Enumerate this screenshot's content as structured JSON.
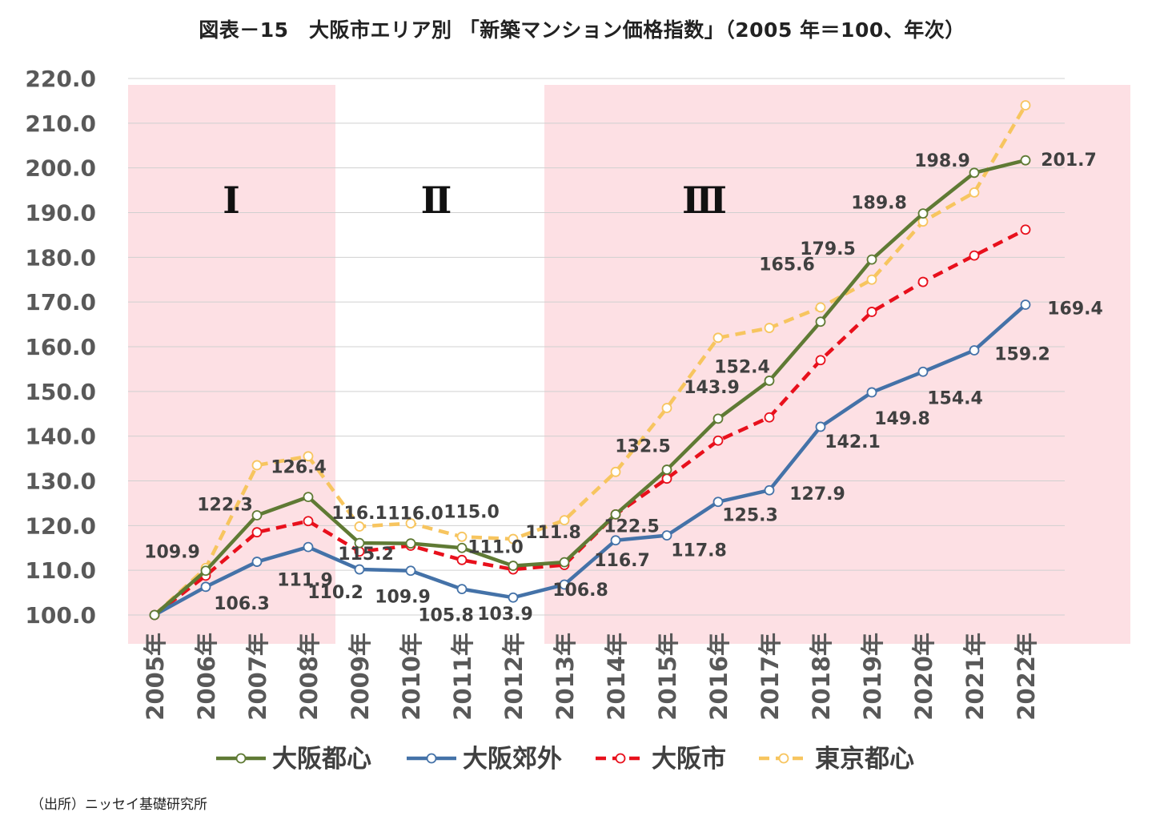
{
  "title": "図表－15　大阪市エリア別 「新築マンション価格指数」（2005 年＝100、年次）",
  "source": "（出所）ニッセイ基礎研究所",
  "chart_data": {
    "type": "line",
    "title": "図表－15　大阪市エリア別 「新築マンション価格指数」（2005 年＝100、年次）",
    "categories": [
      "2005年",
      "2006年",
      "2007年",
      "2008年",
      "2009年",
      "2010年",
      "2011年",
      "2012年",
      "2013年",
      "2014年",
      "2015年",
      "2016年",
      "2017年",
      "2018年",
      "2019年",
      "2020年",
      "2021年",
      "2022年"
    ],
    "ylim": [
      100,
      220
    ],
    "ytick_step": 10,
    "ytick_labels": [
      "100.0",
      "110.0",
      "120.0",
      "130.0",
      "140.0",
      "150.0",
      "160.0",
      "170.0",
      "180.0",
      "190.0",
      "200.0",
      "210.0",
      "220.0"
    ],
    "grid": true,
    "legend_position": "bottom",
    "periods": [
      {
        "label": "Ⅰ",
        "from": "2005年",
        "to": "2008年",
        "shaded": true,
        "color": "#fde0e4"
      },
      {
        "label": "Ⅱ",
        "from": "2009年",
        "to": "2012年",
        "shaded": false
      },
      {
        "label": "Ⅲ",
        "from": "2013年",
        "to": "2022年",
        "shaded": true,
        "color": "#fde0e4"
      }
    ],
    "series": [
      {
        "name": "東京都心",
        "color": "#f7c55f",
        "dash": "dashed",
        "values": [
          100.0,
          110.5,
          133.5,
          135.5,
          119.8,
          120.5,
          117.5,
          117.0,
          121.2,
          132.0,
          146.3,
          162.0,
          164.2,
          168.8,
          175.0,
          188.0,
          194.5,
          214.0
        ]
      },
      {
        "name": "大阪市",
        "color": "#e8101c",
        "dash": "dashed",
        "values": [
          100.0,
          108.8,
          118.5,
          121.0,
          114.2,
          115.5,
          112.3,
          110.2,
          111.2,
          122.5,
          130.5,
          139.0,
          144.2,
          157.0,
          167.8,
          174.5,
          180.4,
          186.2
        ]
      },
      {
        "name": "大阪郊外",
        "color": "#4472a8",
        "dash": "solid",
        "values": [
          100.0,
          106.3,
          111.9,
          115.2,
          110.2,
          109.9,
          105.8,
          103.9,
          106.8,
          116.7,
          117.8,
          125.3,
          127.9,
          142.1,
          149.8,
          154.4,
          159.2,
          169.4
        ],
        "data_labels": [
          null,
          "106.3",
          "111.9",
          "115.2",
          "110.2",
          "109.9",
          "105.8",
          "103.9",
          "106.8",
          "116.7",
          "117.8",
          "125.3",
          "127.9",
          "142.1",
          "149.8",
          "154.4",
          "159.2",
          "169.4"
        ]
      },
      {
        "name": "大阪都心",
        "color": "#5f7a34",
        "dash": "solid",
        "values": [
          100.0,
          109.9,
          122.3,
          126.4,
          116.1,
          116.0,
          115.0,
          111.0,
          111.8,
          122.5,
          132.5,
          143.9,
          152.4,
          165.6,
          179.5,
          189.8,
          198.9,
          201.7
        ],
        "data_labels": [
          null,
          "109.9",
          "122.3",
          "126.4",
          "116.1",
          "116.0",
          "115.0",
          "111.0",
          "111.8",
          "122.5",
          "132.5",
          "143.9",
          "152.4",
          "165.6",
          "179.5",
          "189.8",
          "198.9",
          "201.7"
        ]
      }
    ],
    "legend": [
      "大阪都心",
      "大阪郊外",
      "大阪市",
      "東京都心"
    ]
  }
}
